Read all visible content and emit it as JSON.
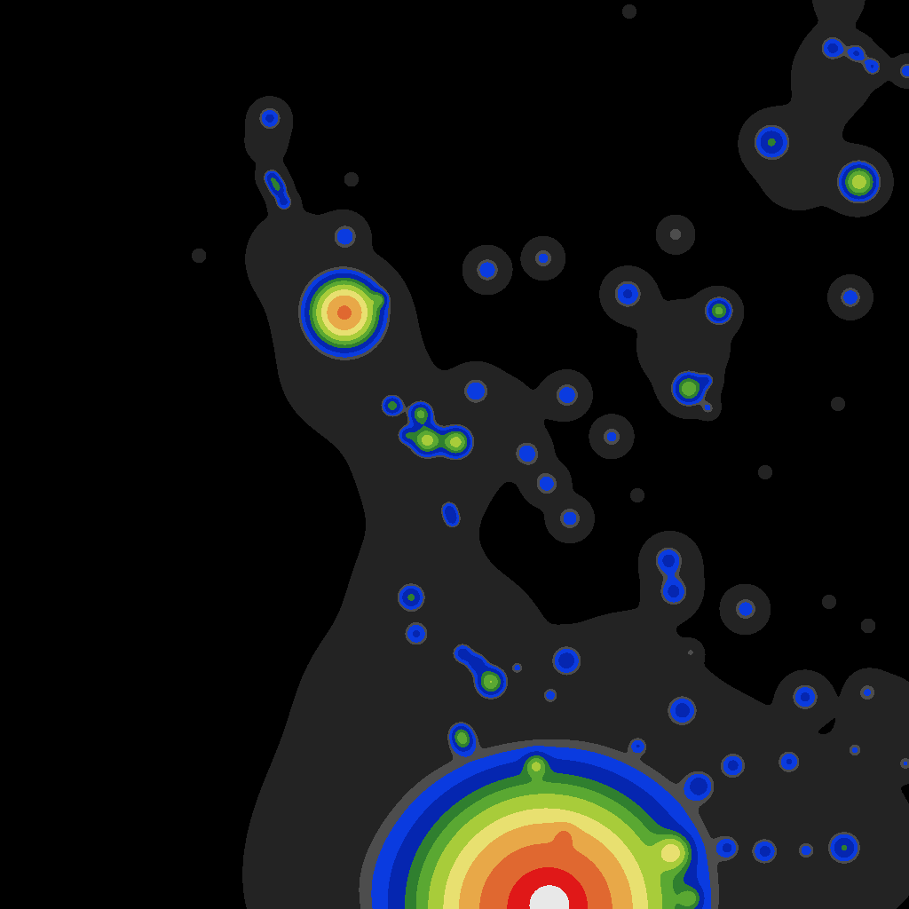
{
  "chart_data": {
    "type": "contour",
    "xlim": [
      0,
      1024
    ],
    "ylim": [
      0,
      1024
    ],
    "tick_labels": false,
    "sources": {
      "x": [
        304,
        306,
        313,
        320,
        389,
        388,
        428,
        442,
        474,
        481,
        514,
        458,
        536,
        594,
        616,
        642,
        506,
        510,
        463,
        469,
        521,
        537,
        553,
        583,
        519,
        522,
        638,
        604,
        769,
        753,
        759,
        620,
        615,
        620,
        636,
        758,
        778,
        826,
        889,
        862,
        908,
        951,
        788,
        907,
        977,
        963,
        1020,
        820,
        719,
        778,
        840,
        869,
        968,
        938,
        965,
        983,
        1022,
        707,
        810,
        776,
        797,
        798,
        761,
        612,
        549,
        639,
        689,
        958,
        224,
        396,
        709,
        944,
        718,
        934,
        978,
        862,
        330,
        300,
        395,
        480,
        560,
        470,
        440,
        420,
        380,
        560,
        700,
        800,
        960,
        1000,
        760,
        940,
        900,
        770,
        945
      ],
      "y": [
        133,
        200,
        212,
        228,
        266,
        352,
        337,
        457,
        466,
        496,
        498,
        490,
        440,
        511,
        545,
        584,
        574,
        586,
        673,
        714,
        736,
        747,
        768,
        752,
        826,
        836,
        744,
        862,
        800,
        631,
        667,
        783,
        1025,
        1018,
        941,
        960,
        1012,
        862,
        858,
        959,
        958,
        955,
        885,
        785,
        780,
        845,
        860,
        955,
        840,
        735,
        686,
        160,
        205,
        54,
        60,
        75,
        80,
        331,
        350,
        438,
        428,
        460,
        264,
        291,
        304,
        445,
        492,
        335,
        288,
        202,
        13,
        455,
        558,
        678,
        705,
        532,
        290,
        160,
        410,
        530,
        470,
        660,
        780,
        920,
        1010,
        700,
        760,
        900,
        960,
        800,
        640,
        80,
        190,
        390,
        -5
      ],
      "amplitude": [
        0.9,
        1.0,
        1.1,
        0.9,
        0.75,
        4.33,
        0.8,
        1.3,
        1.5,
        2.0,
        2.0,
        0.9,
        0.75,
        0.75,
        0.75,
        0.75,
        0.8,
        0.8,
        1.1,
        0.75,
        0.9,
        0.9,
        1.8,
        0.6,
        0.9,
        0.9,
        1.0,
        1.1,
        0.9,
        0.9,
        0.9,
        0.6,
        6.15,
        2.0,
        0.9,
        1.8,
        0.8,
        0.8,
        0.8,
        0.8,
        0.6,
        1.1,
        0.8,
        0.9,
        0.6,
        0.6,
        0.6,
        0.6,
        0.5,
        0.5,
        0.75,
        1.2,
        2.2,
        0.9,
        0.8,
        0.8,
        0.8,
        0.9,
        1.6,
        1.8,
        0.6,
        0.6,
        0.6,
        0.7,
        0.8,
        0.8,
        0.7,
        0.8,
        0.4,
        0.4,
        0.4,
        0.4,
        0.4,
        0.4,
        0.4,
        0.4,
        0.12,
        0.08,
        0.15,
        0.15,
        0.1,
        0.15,
        0.15,
        0.15,
        0.15,
        0.08,
        0.12,
        0.15,
        0.12,
        0.08,
        0.08,
        0.1,
        0.1,
        0.1,
        0.3
      ],
      "spread": [
        10,
        7,
        7,
        7,
        12,
        24,
        6,
        8,
        9,
        11,
        11,
        7,
        12,
        12,
        12,
        12,
        7,
        7,
        10,
        10,
        8,
        8,
        11,
        6,
        8,
        8,
        12,
        8,
        12,
        12,
        12,
        7,
        85,
        20,
        8,
        12,
        8,
        10,
        10,
        10,
        8,
        12,
        10,
        12,
        10,
        8,
        8,
        8,
        6,
        6,
        12,
        14,
        14,
        10,
        8,
        8,
        8,
        13,
        10,
        12,
        6,
        6,
        10,
        11,
        12,
        12,
        11,
        11,
        4,
        4,
        4,
        4,
        4,
        4,
        4,
        4,
        40,
        25,
        55,
        50,
        40,
        45,
        60,
        80,
        60,
        40,
        50,
        80,
        60,
        40,
        30,
        40,
        40,
        45,
        15
      ]
    },
    "levels": [
      0.05,
      0.5,
      0.62,
      0.85,
      1.2,
      1.5,
      1.9,
      2.5,
      3.2,
      4.2,
      5.5,
      7.0
    ],
    "colors": [
      "#232323",
      "#4d4d4d",
      "#0a3be0",
      "#0526b0",
      "#2f7f2f",
      "#5aa832",
      "#a8cc3a",
      "#e8e070",
      "#e8a848",
      "#e06830",
      "#e01818",
      "#e8e8e8"
    ]
  }
}
